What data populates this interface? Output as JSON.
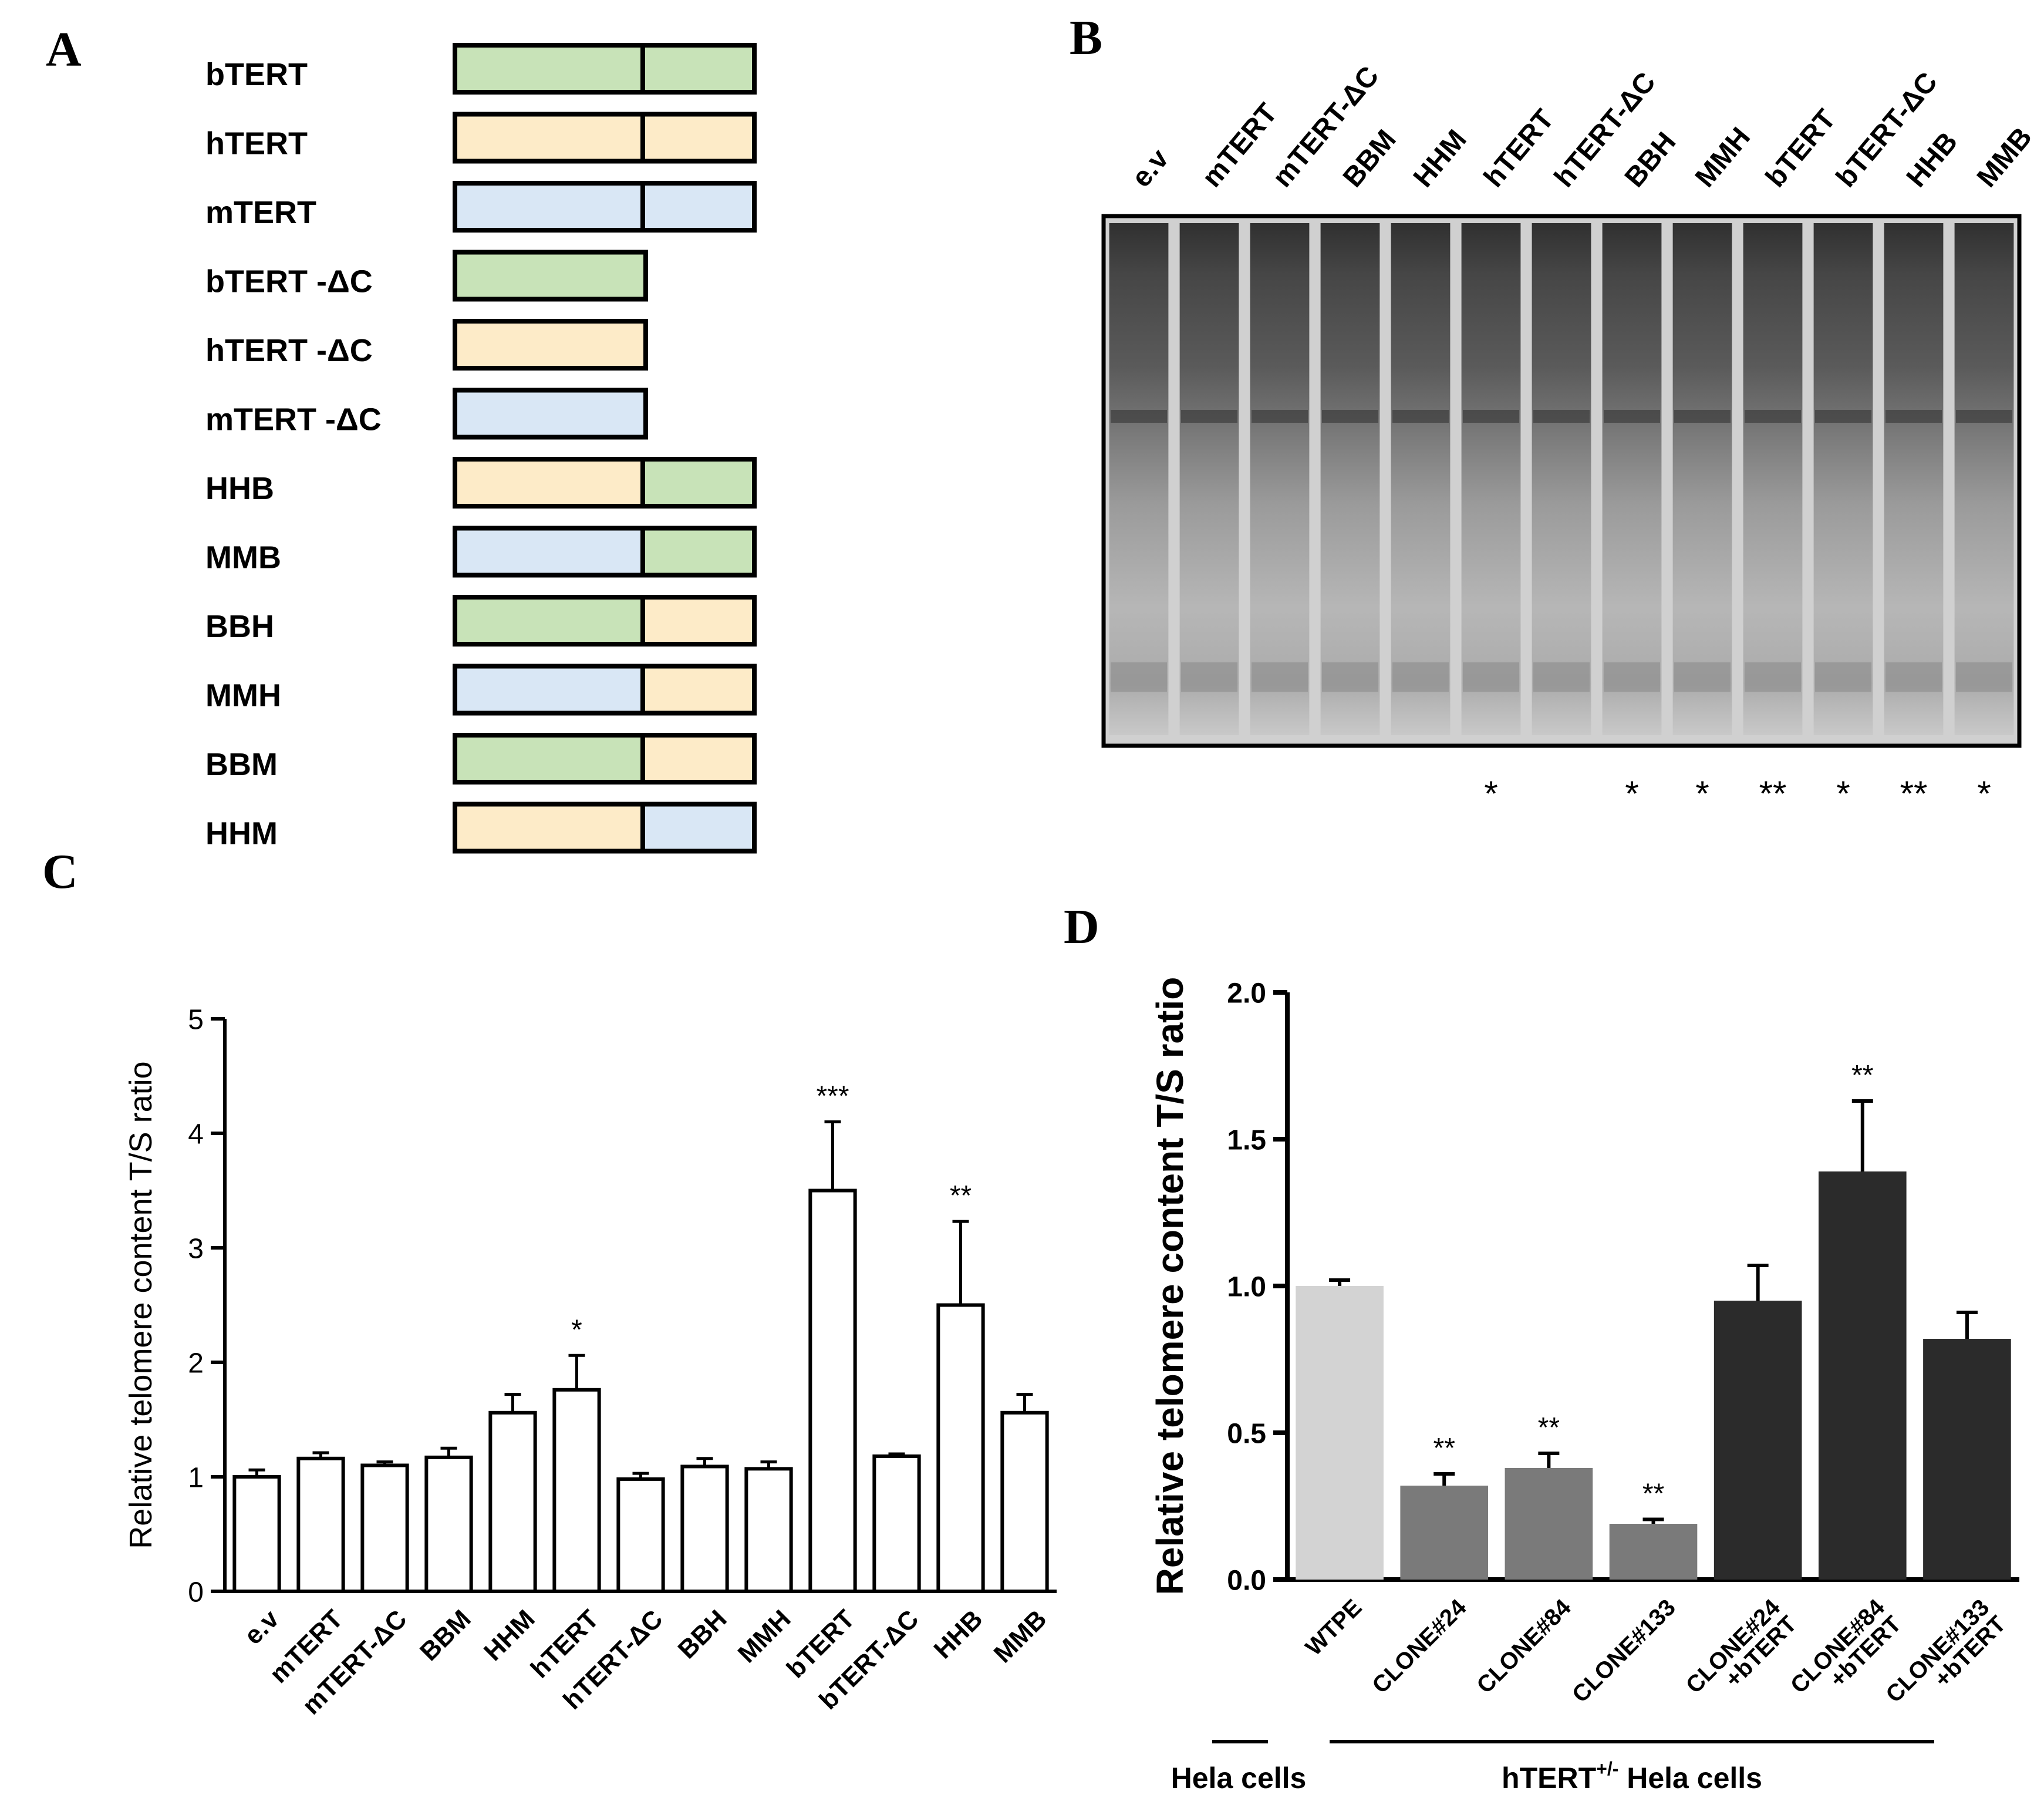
{
  "panels": {
    "a": "A",
    "b": "B",
    "c": "C",
    "d": "D"
  },
  "constructs": {
    "colors": {
      "b": "#c8e3b8",
      "h": "#fdebc8",
      "m": "#d9e7f5"
    },
    "items": [
      {
        "label": "bTERT",
        "n": "b",
        "c": "b"
      },
      {
        "label": "hTERT",
        "n": "h",
        "c": "h"
      },
      {
        "label": "mTERT",
        "n": "m",
        "c": "m"
      },
      {
        "label": "bTERT -ΔC",
        "n": "b",
        "c": ""
      },
      {
        "label": "hTERT -ΔC",
        "n": "h",
        "c": ""
      },
      {
        "label": "mTERT -ΔC",
        "n": "m",
        "c": ""
      },
      {
        "label": "HHB",
        "n": "h",
        "c": "b"
      },
      {
        "label": "MMB",
        "n": "m",
        "c": "b"
      },
      {
        "label": "BBH",
        "n": "b",
        "c": "h"
      },
      {
        "label": "MMH",
        "n": "m",
        "c": "h"
      },
      {
        "label": "BBM",
        "n": "b",
        "c": "h"
      },
      {
        "label": "HHM",
        "n": "h",
        "c": "m"
      }
    ]
  },
  "gel": {
    "lanes": [
      "e.v",
      "mTERT",
      "mTERT-ΔC",
      "BBM",
      "HHM",
      "hTERT",
      "hTERT-ΔC",
      "BBH",
      "MMH",
      "bTERT",
      "bTERT-ΔC",
      "HHB",
      "MMB"
    ],
    "significance": [
      "",
      "",
      "",
      "",
      "",
      "*",
      "",
      "*",
      "*",
      "**",
      "*",
      "**",
      "*"
    ]
  },
  "chart_data": [
    {
      "type": "bar",
      "ylabel": "Relative telomere content T/S ratio",
      "ylim": [
        0,
        5
      ],
      "yticks": [
        "0",
        "1",
        "2",
        "3",
        "4",
        "5"
      ],
      "categories": [
        "e.v",
        "mTERT",
        "mTERT-ΔC",
        "BBM",
        "HHM",
        "hTERT",
        "hTERT-ΔC",
        "BBH",
        "MMH",
        "bTERT",
        "bTERT-ΔC",
        "HHB",
        "MMB"
      ],
      "values": [
        1.0,
        1.16,
        1.1,
        1.17,
        1.56,
        1.76,
        0.98,
        1.09,
        1.07,
        3.5,
        1.18,
        2.5,
        1.56
      ],
      "errors": [
        0.06,
        0.05,
        0.03,
        0.08,
        0.16,
        0.3,
        0.05,
        0.07,
        0.06,
        0.6,
        0.02,
        0.73,
        0.16
      ],
      "significance": [
        "",
        "",
        "",
        "",
        "",
        "*",
        "",
        "",
        "",
        "***",
        "",
        "**",
        ""
      ]
    },
    {
      "type": "bar",
      "ylabel": "Relative telomere content T/S ratio",
      "ylim": [
        0,
        2
      ],
      "yticks": [
        "0.0",
        "0.5",
        "1.0",
        "1.5",
        "2.0"
      ],
      "categories": [
        "WTPE",
        "CLONE#24",
        "CLONE#84",
        "CLONE#133",
        "CLONE#24\n+bTERT",
        "CLONE#84\n+bTERT",
        "CLONE#133\n+bTERT"
      ],
      "values": [
        1.0,
        0.32,
        0.38,
        0.19,
        0.95,
        1.39,
        0.82
      ],
      "errors": [
        0.02,
        0.04,
        0.05,
        0.015,
        0.12,
        0.24,
        0.09
      ],
      "significance": [
        "",
        "**",
        "**",
        "**",
        "",
        "**",
        ""
      ],
      "colors": [
        "#d3d3d3",
        "#7a7a7a",
        "#7a7a7a",
        "#7a7a7a",
        "#2b2b2b",
        "#2b2b2b",
        "#2b2b2b"
      ],
      "groups": [
        {
          "label": "Hela cells"
        },
        {
          "label_main": "hTERT",
          "label_sup": "+/-",
          "label_rest": " Hela cells"
        }
      ]
    }
  ]
}
